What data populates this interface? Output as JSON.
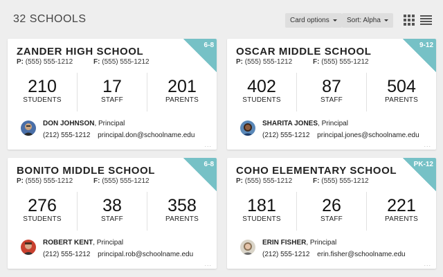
{
  "header": {
    "title": "32 SCHOOLS",
    "card_options_label": "Card options",
    "sort_label": "Sort: Alpha"
  },
  "labels": {
    "students": "STUDENTS",
    "staff": "STAFF",
    "parents": "PARENTS",
    "phone_prefix": "P:",
    "fax_prefix": "F:",
    "principal_suffix": ", Principal",
    "more": "..."
  },
  "colors": {
    "corner": "#76c1c6",
    "background": "#eeeeee"
  },
  "schools": [
    {
      "name": "ZANDER HIGH SCHOOL",
      "grade": "6-8",
      "phone": "(555) 555-1212",
      "fax": "(555) 555-1212",
      "students": "210",
      "staff": "17",
      "parents": "201",
      "principal": "DON JOHNSON",
      "principal_phone": "(212) 555-1212",
      "principal_email": "principal.don@schoolname.edu"
    },
    {
      "name": "OSCAR MIDDLE SCHOOL",
      "grade": "9-12",
      "phone": "(555) 555-1212",
      "fax": "(555) 555-1212",
      "students": "402",
      "staff": "87",
      "parents": "504",
      "principal": "SHARITA JONES",
      "principal_phone": "(212) 555-1212",
      "principal_email": "principal.jones@schoolname.edu"
    },
    {
      "name": "BONITO MIDDLE SCHOOL",
      "grade": "6-8",
      "phone": "(555) 555-1212",
      "fax": "(555) 555-1212",
      "students": "276",
      "staff": "38",
      "parents": "358",
      "principal": "ROBERT KENT",
      "principal_phone": "(212) 555-1212",
      "principal_email": "principal.rob@schoolname.edu"
    },
    {
      "name": "COHO ELEMENTARY SCHOOL",
      "grade": "PK-12",
      "phone": "(555) 555-1212",
      "fax": "(555) 555-1212",
      "students": "181",
      "staff": "26",
      "parents": "221",
      "principal": "ERIN FISHER",
      "principal_phone": "(212) 555-1212",
      "principal_email": "erin.fisher@schoolname.edu"
    }
  ]
}
